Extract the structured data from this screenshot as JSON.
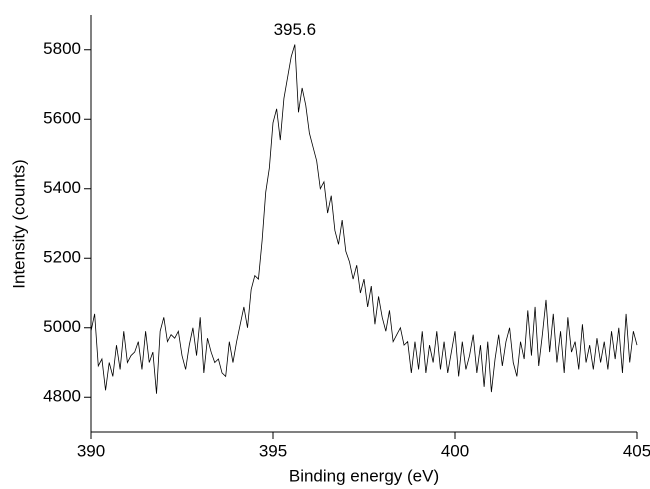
{
  "chart_data": {
    "type": "line",
    "xlabel": "Binding energy (eV)",
    "ylabel": "Intensity (counts)",
    "annotation": "395.6",
    "x": [
      390.0,
      390.1,
      390.2,
      390.3,
      390.4,
      390.5,
      390.6,
      390.7,
      390.8,
      390.9,
      391.0,
      391.1,
      391.2,
      391.3,
      391.4,
      391.5,
      391.6,
      391.7,
      391.8,
      391.9,
      392.0,
      392.1,
      392.2,
      392.3,
      392.4,
      392.5,
      392.6,
      392.7,
      392.8,
      392.9,
      393.0,
      393.1,
      393.2,
      393.3,
      393.4,
      393.5,
      393.6,
      393.7,
      393.8,
      393.9,
      394.0,
      394.1,
      394.2,
      394.3,
      394.4,
      394.5,
      394.6,
      394.7,
      394.8,
      394.9,
      395.0,
      395.1,
      395.2,
      395.3,
      395.4,
      395.5,
      395.6,
      395.7,
      395.8,
      395.9,
      396.0,
      396.1,
      396.2,
      396.3,
      396.4,
      396.5,
      396.6,
      396.7,
      396.8,
      396.9,
      397.0,
      397.1,
      397.2,
      397.3,
      397.4,
      397.5,
      397.6,
      397.7,
      397.8,
      397.9,
      398.0,
      398.1,
      398.2,
      398.3,
      398.4,
      398.5,
      398.6,
      398.7,
      398.8,
      398.9,
      399.0,
      399.1,
      399.2,
      399.3,
      399.4,
      399.5,
      399.6,
      399.7,
      399.8,
      399.9,
      400.0,
      400.1,
      400.2,
      400.3,
      400.4,
      400.5,
      400.6,
      400.7,
      400.8,
      400.9,
      401.0,
      401.1,
      401.2,
      401.3,
      401.4,
      401.5,
      401.6,
      401.7,
      401.8,
      401.9,
      402.0,
      402.1,
      402.2,
      402.3,
      402.4,
      402.5,
      402.6,
      402.7,
      402.8,
      402.9,
      403.0,
      403.1,
      403.2,
      403.3,
      403.4,
      403.5,
      403.6,
      403.7,
      403.8,
      403.9,
      404.0,
      404.1,
      404.2,
      404.3,
      404.4,
      404.5,
      404.6,
      404.7,
      404.8,
      404.9,
      405.0
    ],
    "series": [
      {
        "color": "#000000",
        "values": [
          4990,
          5040,
          4890,
          4910,
          4820,
          4900,
          4860,
          4950,
          4880,
          4990,
          4900,
          4920,
          4930,
          4960,
          4880,
          4990,
          4900,
          4930,
          4810,
          4990,
          5030,
          4960,
          4980,
          4970,
          4990,
          4920,
          4880,
          4950,
          5000,
          4920,
          5030,
          4870,
          4970,
          4930,
          4900,
          4910,
          4870,
          4860,
          4960,
          4900,
          4960,
          5010,
          5060,
          5000,
          5110,
          5150,
          5140,
          5250,
          5390,
          5460,
          5590,
          5630,
          5540,
          5660,
          5720,
          5780,
          5815,
          5620,
          5690,
          5640,
          5560,
          5520,
          5480,
          5400,
          5420,
          5330,
          5380,
          5280,
          5240,
          5310,
          5220,
          5190,
          5140,
          5180,
          5100,
          5140,
          5060,
          5120,
          5010,
          5090,
          5030,
          4990,
          5050,
          4960,
          4980,
          5000,
          4950,
          4960,
          4870,
          4960,
          4880,
          4990,
          4870,
          4950,
          4900,
          4990,
          4880,
          4960,
          4870,
          4930,
          4990,
          4860,
          4960,
          4880,
          4920,
          4980,
          4870,
          4950,
          4830,
          4960,
          4815,
          4910,
          4980,
          4890,
          4960,
          5000,
          4900,
          4860,
          4960,
          4910,
          5050,
          4920,
          5060,
          4890,
          4980,
          5080,
          4930,
          5040,
          4900,
          4990,
          4870,
          5030,
          4930,
          4960,
          4880,
          5010,
          4900,
          4950,
          4880,
          4970,
          4900,
          4960,
          4880,
          4990,
          4910,
          5000,
          4870,
          5040,
          4900,
          4990,
          4950
        ]
      }
    ],
    "xlim": [
      390,
      405
    ],
    "xticks": [
      390,
      395,
      400,
      405
    ],
    "ylim": [
      4700,
      5900
    ],
    "yticks": [
      4800,
      5000,
      5200,
      5400,
      5600,
      5800
    ]
  }
}
